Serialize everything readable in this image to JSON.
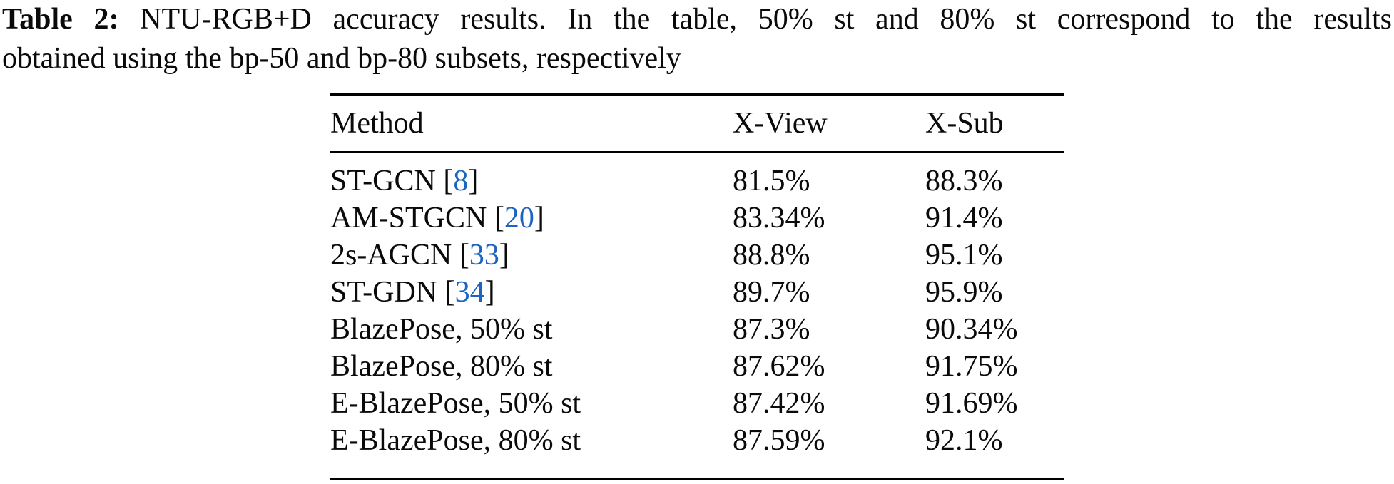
{
  "page": {
    "background": "#ffffff",
    "text_color": "#0a0a0a",
    "citation_link_color": "#1b65c0"
  },
  "caption": {
    "label": "Table 2:",
    "line1_rest": "NTU-RGB+D accuracy results. In the table, 50% st and 80% st correspond to the results",
    "line2": "obtained using the bp-50 and bp-80 subsets, respectively"
  },
  "table": {
    "columns": [
      "Method",
      "X-View",
      "X-Sub"
    ],
    "rows": [
      {
        "method": "ST-GCN",
        "citation": "8",
        "x_view": "81.5%",
        "x_sub": "88.3%"
      },
      {
        "method": "AM-STGCN",
        "citation": "20",
        "x_view": "83.34%",
        "x_sub": "91.4%"
      },
      {
        "method": "2s-AGCN",
        "citation": "33",
        "x_view": "88.8%",
        "x_sub": "95.1%"
      },
      {
        "method": "ST-GDN",
        "citation": "34",
        "x_view": "89.7%",
        "x_sub": "95.9%"
      },
      {
        "method": "BlazePose, 50% st",
        "citation": null,
        "x_view": "87.3%",
        "x_sub": "90.34%"
      },
      {
        "method": "BlazePose, 80% st",
        "citation": null,
        "x_view": "87.62%",
        "x_sub": "91.75%"
      },
      {
        "method": "E-BlazePose, 50% st",
        "citation": null,
        "x_view": "87.42%",
        "x_sub": "91.69%"
      },
      {
        "method": "E-BlazePose, 80% st",
        "citation": null,
        "x_view": "87.59%",
        "x_sub": "92.1%"
      }
    ]
  }
}
